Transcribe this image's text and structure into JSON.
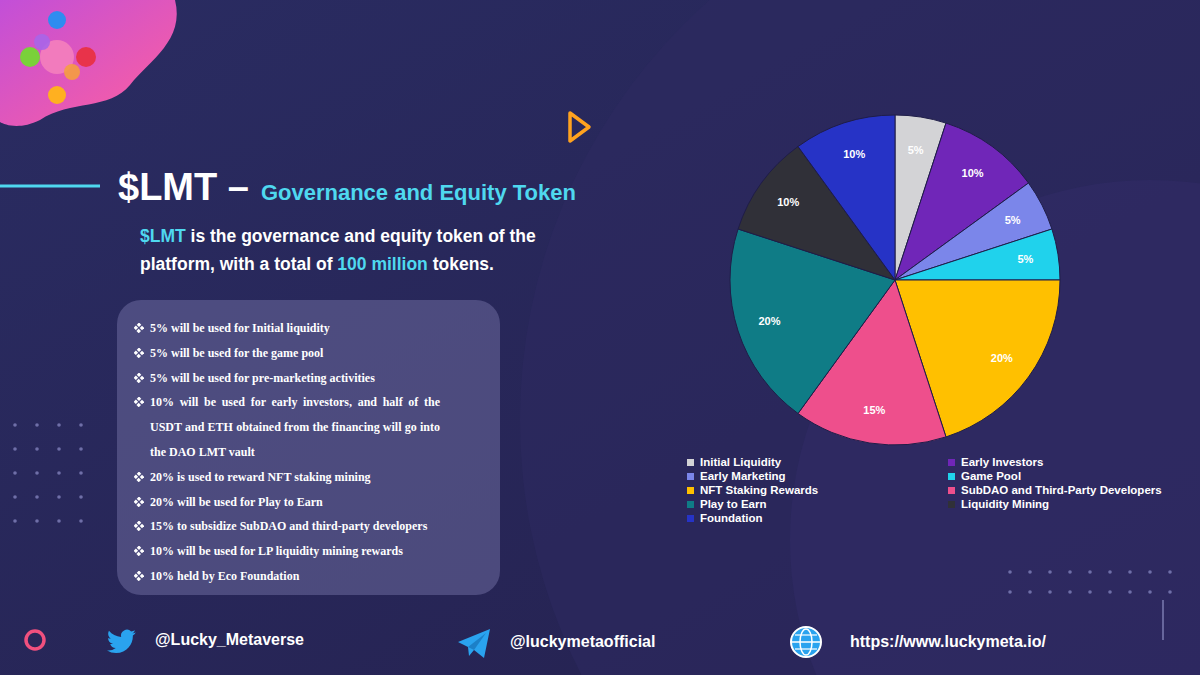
{
  "header": {
    "title": "$LMT –",
    "subtitle": "Governance and Equity Token",
    "description": [
      "$LMT",
      " is the governance and equity token of the platform, with a total of ",
      "100 million",
      " tokens."
    ]
  },
  "bullets": [
    "5% will be used for Initial liquidity",
    "5% will be used for the game pool",
    "5% will be used for pre-marketing activities",
    "10% will be used for early investors, and half of the USDT and ETH obtained from the financing will go into the DAO LMT vault",
    "20% is used to reward NFT staking mining",
    "20% will be used for Play to Earn",
    "15% to subsidize SubDAO and third-party developers",
    "10% will be used for LP liquidity mining rewards",
    "10% held by Eco Foundation"
  ],
  "footer": {
    "twitter": "@Lucky_Metaverse",
    "telegram": "@luckymetaofficial",
    "website": "https://www.luckymeta.io/"
  },
  "chart_data": {
    "type": "pie",
    "categories": [
      "Initial Liquidity",
      "Early Investors",
      "Early Marketing",
      "Game Pool",
      "NFT Staking Rewards",
      "SubDAO and Third-Party Developers",
      "Play to Earn",
      "Liquidity Mining",
      "Foundation"
    ],
    "values": [
      5,
      10,
      5,
      5,
      20,
      15,
      20,
      10,
      10
    ],
    "value_labels": [
      "5%",
      "10%",
      "5%",
      "5%",
      "20%",
      "15%",
      "20%",
      "10%",
      "10%"
    ],
    "colors": [
      "#d3d3d6",
      "#7026b8",
      "#7b86ea",
      "#20d2ec",
      "#ffc000",
      "#ee4f8c",
      "#0f7c86",
      "#303038",
      "#2633c6"
    ],
    "data_labels": true,
    "legend": "bottom"
  }
}
